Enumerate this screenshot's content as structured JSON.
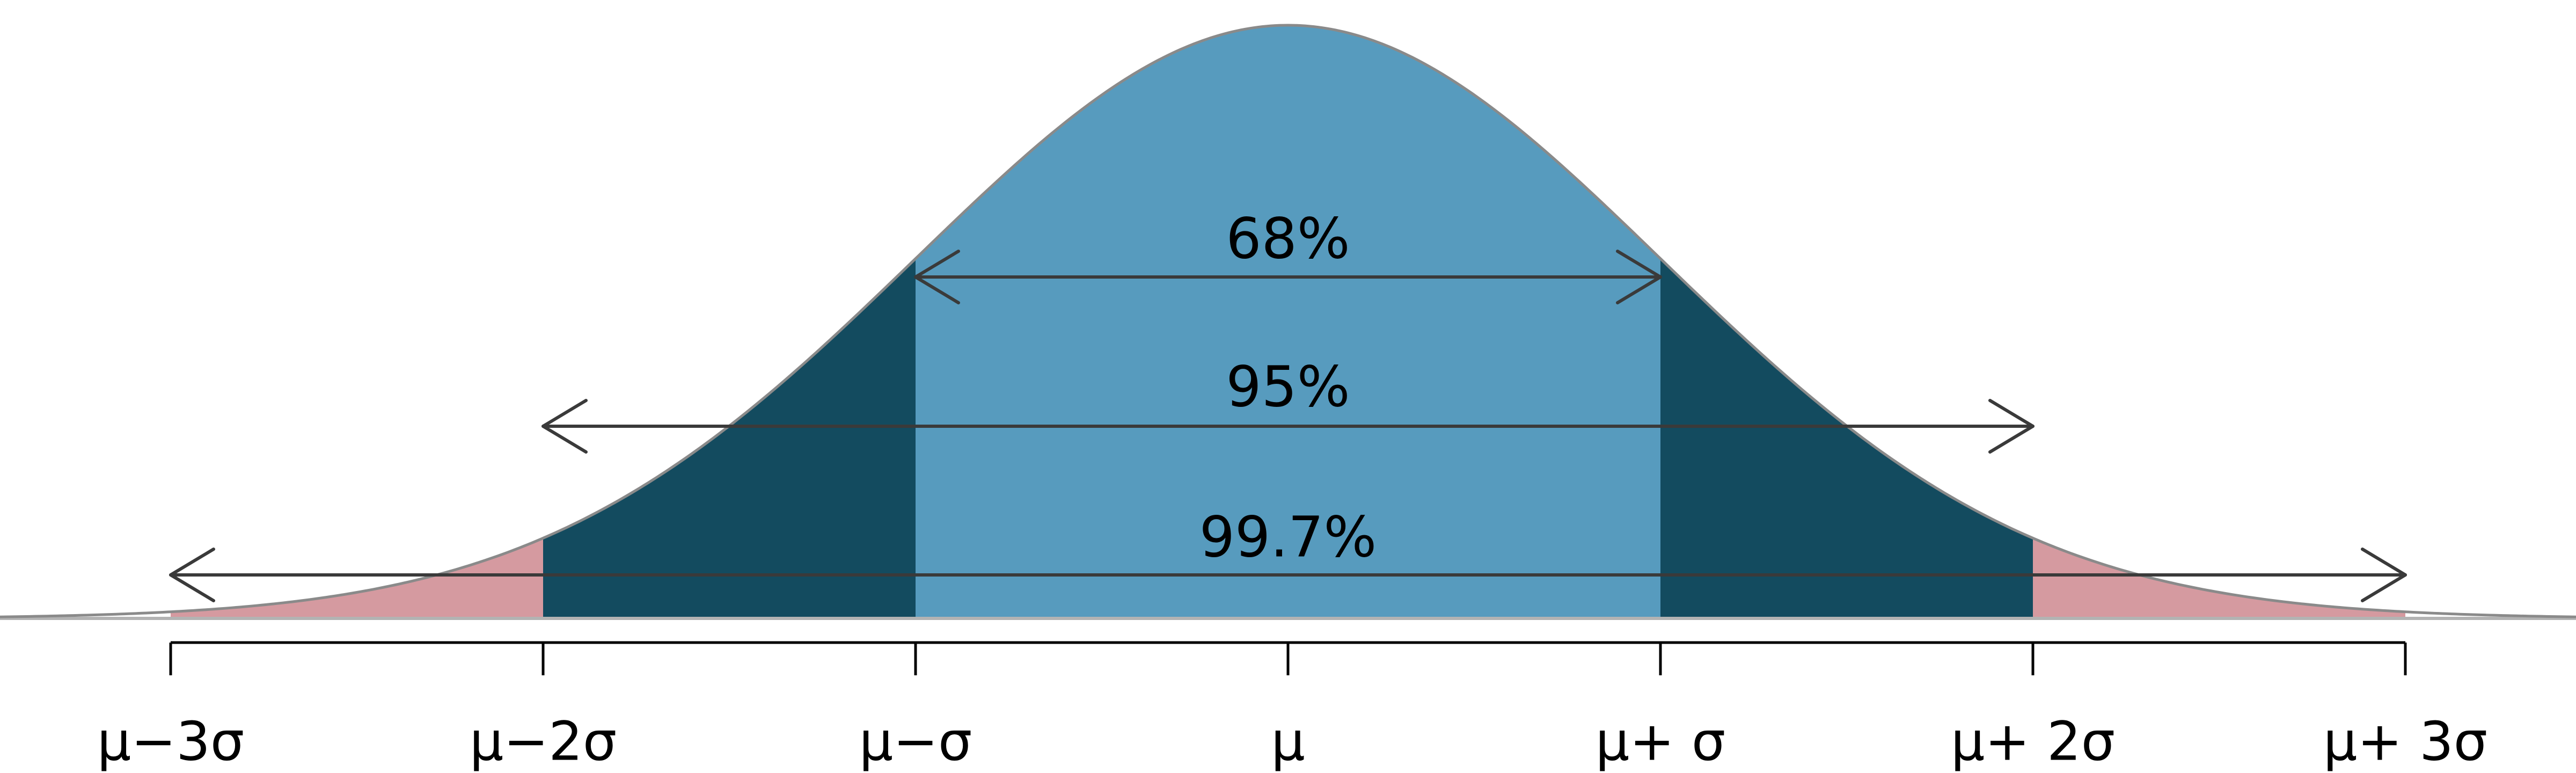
{
  "diagram": {
    "colors": {
      "center_band": "#579bbe",
      "second_band": "#134b5f",
      "third_band": "#d59aa0",
      "curve_outline": "#8a8a8a",
      "arrow": "#3a3a3a",
      "axis": "#000000",
      "baseline": "#b3b3b3"
    },
    "bands": [
      {
        "from_sigma": -3,
        "to_sigma": -2,
        "color_key": "third_band"
      },
      {
        "from_sigma": -2,
        "to_sigma": -1,
        "color_key": "second_band"
      },
      {
        "from_sigma": -1,
        "to_sigma": 1,
        "color_key": "center_band"
      },
      {
        "from_sigma": 1,
        "to_sigma": 2,
        "color_key": "second_band"
      },
      {
        "from_sigma": 2,
        "to_sigma": 3,
        "color_key": "third_band"
      }
    ],
    "ranges": [
      {
        "label": "68%",
        "sigma": 1
      },
      {
        "label": "95%",
        "sigma": 2
      },
      {
        "label": "99.7%",
        "sigma": 3
      }
    ],
    "ticks": [
      {
        "sigma": -3,
        "label": "μ−3σ"
      },
      {
        "sigma": -2,
        "label": "μ−2σ"
      },
      {
        "sigma": -1,
        "label": "μ−σ"
      },
      {
        "sigma": 0,
        "label": "μ"
      },
      {
        "sigma": 1,
        "label": "μ+ σ"
      },
      {
        "sigma": 2,
        "label": "μ+ 2σ"
      },
      {
        "sigma": 3,
        "label": "μ+ 3σ"
      }
    ]
  }
}
